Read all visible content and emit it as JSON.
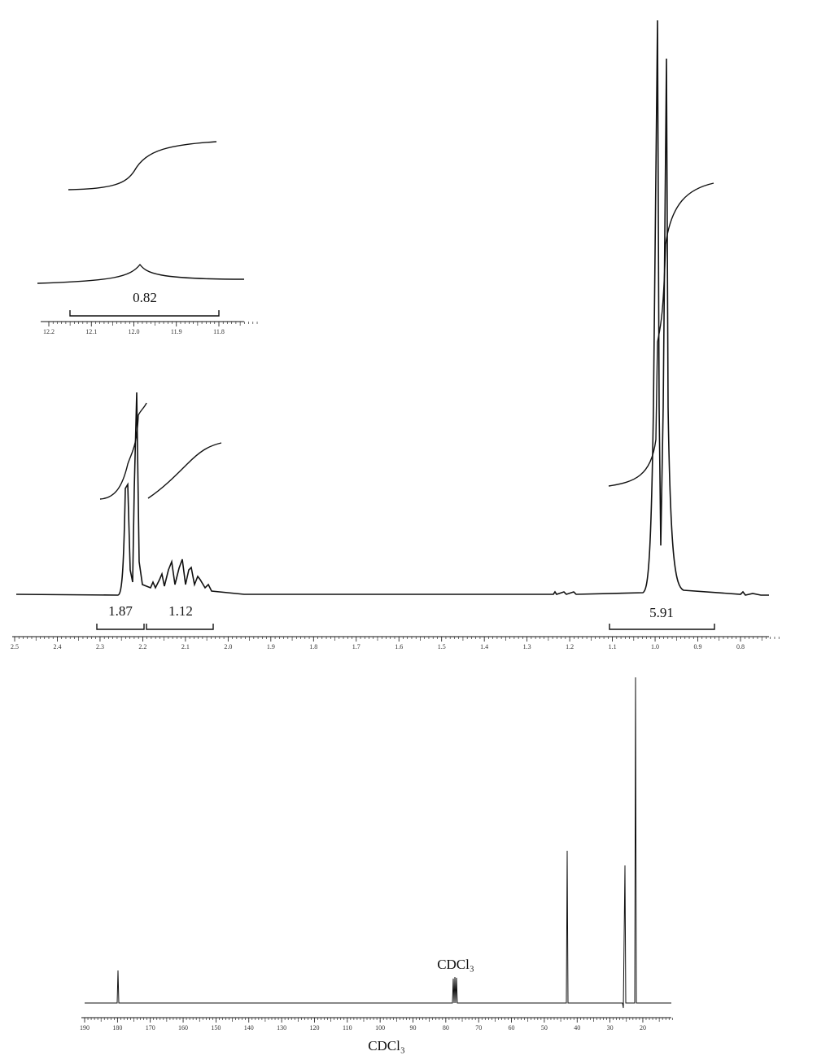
{
  "proton": {
    "inset": {
      "integral": "0.82",
      "ticks": [
        "12.2",
        "12.1",
        "12.0",
        "11.9",
        "11.8"
      ]
    },
    "integrals": [
      "1.87",
      "1.12",
      "5.91"
    ],
    "ticks": [
      "2.5",
      "2.4",
      "2.3",
      "2.2",
      "2.1",
      "2.0",
      "1.9",
      "1.8",
      "1.7",
      "1.6",
      "1.5",
      "1.4",
      "1.3",
      "1.2",
      "1.1",
      "1.0",
      "0.9",
      "0.8"
    ]
  },
  "carbon": {
    "solvent_label": "CDCl₃",
    "ticks": [
      "190",
      "180",
      "170",
      "160",
      "150",
      "140",
      "130",
      "120",
      "110",
      "100",
      "90",
      "80",
      "70",
      "60",
      "50",
      "40",
      "30",
      "20"
    ],
    "axis_label": "CDCl₃"
  }
}
